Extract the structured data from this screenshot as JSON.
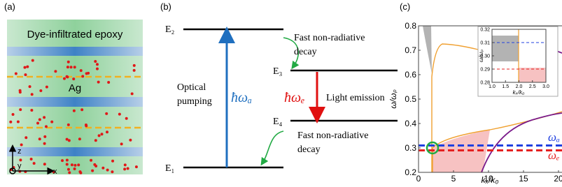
{
  "panel_a": {
    "label": "(a)",
    "epoxy_label": "Dye-infiltrated epoxy",
    "metal_label": "Ag",
    "axis_z": "z",
    "axis_y": "y",
    "axis_x": "x"
  },
  "panel_b": {
    "label": "(b)",
    "level_top": "E₂",
    "level_upper_mid": "E₃",
    "level_lower_mid": "E₄",
    "level_bottom": "E₁",
    "pump_label": "Optical pumping",
    "pump_symbol": "ħωₐ",
    "emission_symbol": "ħωₑ",
    "emission_label": "Light emission",
    "decay_upper": "Fast non-radiative decay",
    "decay_lower": "Fast non-radiative decay"
  },
  "panel_c": {
    "label": "(c)",
    "xlabel": "kₓ/k₀",
    "ylabel": "ω/ωₚ",
    "xlim": [
      0,
      20.3
    ],
    "ylim": [
      0.2,
      0.8
    ],
    "xticks": [
      0,
      5,
      10,
      15,
      20
    ],
    "yticks": [
      0.2,
      0.3,
      0.4,
      0.5,
      0.6,
      0.7,
      0.8
    ],
    "legend": [
      "ωₐ",
      "ωₑ"
    ],
    "inset": {
      "xlabel": "kₓ/k₀",
      "ylabel": "ω/ωₚ",
      "xlim": [
        1,
        3
      ],
      "ylim": [
        0.28,
        0.32
      ],
      "xticks": [
        {
          "value": 1,
          "label": "1.0"
        },
        1.5,
        {
          "value": 2,
          "label": "2.0"
        },
        2.5,
        {
          "value": 3,
          "label": "3.0"
        }
      ],
      "yticks": [
        0.28,
        0.29,
        {
          "value": 0.3,
          "label": "0.30"
        },
        0.31,
        0.32
      ]
    }
  }
}
